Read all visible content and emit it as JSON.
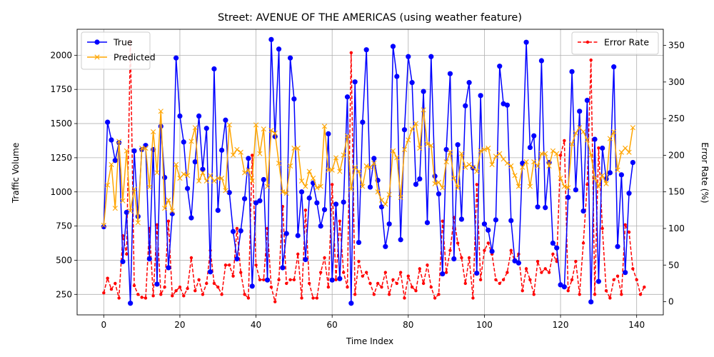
{
  "chart_data": {
    "type": "line",
    "title": "Street: AVENUE OF THE AMERICAS (using weather feature)",
    "xlabel": "Time Index",
    "ylabel": "Traffic Volume",
    "y2label": "Error Rate (%)",
    "xlim": [
      -7,
      147
    ],
    "ylim": [
      100,
      2190
    ],
    "y2lim": [
      -18,
      372
    ],
    "xticks": [
      0,
      20,
      40,
      60,
      80,
      100,
      120,
      140
    ],
    "yticks": [
      250,
      500,
      750,
      1000,
      1250,
      1500,
      1750,
      2000
    ],
    "y2ticks": [
      0,
      50,
      100,
      150,
      200,
      250,
      300,
      350
    ],
    "grid": true,
    "legend_left": "upper-left",
    "legend_right": "upper-right",
    "series": [
      {
        "name": "True",
        "axis": "left",
        "color": "#0000ff",
        "style": "solid",
        "marker": "circle",
        "values": [
          745,
          1510,
          1380,
          1230,
          1360,
          490,
          850,
          185,
          1300,
          820,
          1310,
          1340,
          510,
          1310,
          325,
          1480,
          1105,
          445,
          840,
          1980,
          1555,
          1365,
          1025,
          810,
          1220,
          1555,
          1165,
          1465,
          415,
          1900,
          865,
          1305,
          1525,
          995,
          710,
          510,
          715,
          950,
          1245,
          310,
          920,
          935,
          1090,
          355,
          2115,
          1405,
          2045,
          445,
          695,
          1980,
          1680,
          680,
          1000,
          505,
          955,
          1065,
          920,
          750,
          870,
          1425,
          355,
          910,
          365,
          925,
          1695,
          185,
          1805,
          630,
          1510,
          2040,
          1035,
          1245,
          1085,
          890,
          600,
          765,
          2065,
          1845,
          650,
          1455,
          1990,
          1800,
          1055,
          1095,
          1735,
          775,
          1990,
          1115,
          985,
          400,
          1310,
          1865,
          510,
          1345,
          800,
          1630,
          1800,
          1175,
          405,
          1705,
          765,
          720,
          565,
          795,
          1920,
          1645,
          1635,
          790,
          495,
          480,
          1210,
          2095,
          1325,
          1410,
          890,
          1960,
          885,
          1215,
          625,
          590,
          320,
          305,
          960,
          1880,
          1015,
          1590,
          860,
          1670,
          195,
          1385,
          345,
          1320,
          1095,
          1140,
          1915,
          600,
          1125,
          410,
          990,
          1215
        ]
      },
      {
        "name": "Predicted",
        "axis": "left",
        "color": "#ffa500",
        "style": "solid",
        "marker": "x",
        "values": [
          755,
          1050,
          1200,
          880,
          1370,
          935,
          1300,
          860,
          1020,
          775,
          1320,
          1320,
          1035,
          1440,
          1140,
          1590,
          880,
          940,
          860,
          1200,
          1100,
          1130,
          1120,
          1370,
          1470,
          1080,
          1140,
          1080,
          1120,
          1080,
          1100,
          1100,
          1010,
          1490,
          1270,
          1310,
          1290,
          1140,
          1160,
          1080,
          1490,
          1280,
          1460,
          1040,
          1450,
          1430,
          1210,
          1000,
          990,
          1190,
          1320,
          1320,
          1080,
          1040,
          1150,
          1100,
          1030,
          1040,
          1480,
          1160,
          1160,
          1250,
          1150,
          1270,
          1410,
          1020,
          1180,
          1150,
          1040,
          1190,
          1180,
          1210,
          1000,
          940,
          910,
          980,
          1300,
          1250,
          960,
          1310,
          1380,
          1460,
          1500,
          1320,
          1600,
          1350,
          1340,
          1060,
          1070,
          1030,
          1220,
          1290,
          1100,
          1030,
          1280,
          1180,
          1200,
          1180,
          1150,
          1300,
          1310,
          1320,
          1200,
          1260,
          1280,
          1240,
          1210,
          1190,
          1120,
          1040,
          1180,
          1220,
          1040,
          1220,
          1190,
          1280,
          1280,
          1190,
          1300,
          1280,
          1100,
          1040,
          1030,
          1350,
          1430,
          1470,
          1440,
          1380,
          1270,
          1100,
          1040,
          1120,
          1060,
          1390,
          1440,
          1160,
          1290,
          1320,
          1290,
          1470
        ]
      },
      {
        "name": "Error Rate",
        "axis": "right",
        "color": "#ff0000",
        "style": "dashed",
        "marker": "circle",
        "values": [
          12,
          32,
          17,
          25,
          5,
          90,
          65,
          355,
          22,
          10,
          6,
          5,
          100,
          8,
          105,
          10,
          20,
          110,
          8,
          15,
          20,
          8,
          18,
          60,
          15,
          30,
          10,
          25,
          70,
          25,
          20,
          10,
          50,
          50,
          35,
          100,
          40,
          10,
          5,
          200,
          50,
          30,
          30,
          100,
          20,
          0,
          30,
          130,
          25,
          30,
          30,
          65,
          5,
          125,
          25,
          5,
          5,
          40,
          60,
          20,
          160,
          30,
          110,
          40,
          20,
          340,
          10,
          55,
          35,
          40,
          25,
          10,
          25,
          20,
          40,
          10,
          30,
          25,
          40,
          5,
          35,
          20,
          15,
          45,
          25,
          50,
          20,
          5,
          10,
          110,
          40,
          70,
          115,
          80,
          60,
          25,
          60,
          5,
          160,
          30,
          70,
          80,
          65,
          30,
          25,
          30,
          40,
          70,
          55,
          65,
          15,
          45,
          30,
          10,
          55,
          40,
          45,
          40,
          65,
          55,
          200,
          220,
          15,
          30,
          55,
          10,
          80,
          160,
          330,
          10,
          210,
          100,
          15,
          5,
          30,
          35,
          10,
          105,
          95,
          45,
          30,
          10,
          20
        ]
      }
    ]
  }
}
